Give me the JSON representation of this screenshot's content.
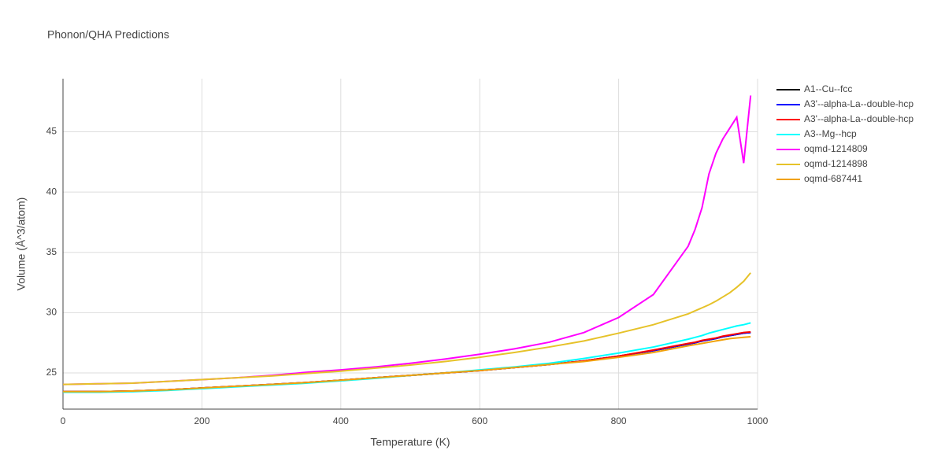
{
  "chart_data": {
    "type": "line",
    "title": "Phonon/QHA Predictions",
    "x_label": "Temperature (K)",
    "y_label": "Volume (Å^3/atom)",
    "x": [
      0,
      50,
      100,
      150,
      200,
      250,
      300,
      350,
      400,
      450,
      500,
      550,
      600,
      650,
      700,
      750,
      800,
      850,
      900,
      910,
      920,
      930,
      940,
      950,
      960,
      970,
      980,
      990
    ],
    "series": [
      {
        "name": "A1--Cu--fcc",
        "color": "#000000",
        "values": [
          23.45,
          23.45,
          23.5,
          23.6,
          23.75,
          23.9,
          24.05,
          24.2,
          24.4,
          24.6,
          24.8,
          25.0,
          25.2,
          25.45,
          25.7,
          26.0,
          26.4,
          26.85,
          27.4,
          27.5,
          27.65,
          27.75,
          27.85,
          28.0,
          28.1,
          28.2,
          28.3,
          28.35
        ]
      },
      {
        "name": "A3'--alpha-La--double-hcp",
        "color": "#0000ff",
        "values": [
          23.45,
          23.45,
          23.5,
          23.6,
          23.75,
          23.9,
          24.05,
          24.2,
          24.4,
          24.6,
          24.8,
          25.0,
          25.2,
          25.45,
          25.7,
          26.0,
          26.4,
          26.85,
          27.4,
          27.5,
          27.65,
          27.75,
          27.85,
          28.0,
          28.1,
          28.2,
          28.3,
          28.35
        ]
      },
      {
        "name": "A3'--alpha-La--double-hcp",
        "color": "#ff0000",
        "values": [
          23.45,
          23.45,
          23.5,
          23.6,
          23.75,
          23.9,
          24.05,
          24.2,
          24.4,
          24.6,
          24.8,
          25.0,
          25.2,
          25.45,
          25.7,
          26.0,
          26.4,
          26.9,
          27.45,
          27.55,
          27.7,
          27.8,
          27.9,
          28.05,
          28.15,
          28.25,
          28.35,
          28.4
        ]
      },
      {
        "name": "A3--Mg--hcp",
        "color": "#00ffff",
        "values": [
          23.4,
          23.4,
          23.45,
          23.55,
          23.7,
          23.85,
          24.0,
          24.15,
          24.35,
          24.55,
          24.8,
          25.0,
          25.25,
          25.5,
          25.8,
          26.2,
          26.65,
          27.15,
          27.8,
          27.95,
          28.1,
          28.3,
          28.45,
          28.6,
          28.75,
          28.9,
          29.0,
          29.15
        ]
      },
      {
        "name": "oqmd-1214809",
        "color": "#ff00ff",
        "values": [
          24.05,
          24.1,
          24.15,
          24.3,
          24.45,
          24.6,
          24.8,
          25.05,
          25.25,
          25.5,
          25.8,
          26.15,
          26.55,
          27.0,
          27.55,
          28.35,
          29.6,
          31.5,
          35.5,
          36.9,
          38.7,
          41.5,
          43.2,
          44.4,
          45.3,
          46.2,
          42.4,
          48.0
        ]
      },
      {
        "name": "oqmd-1214898",
        "color": "#e6c229",
        "values": [
          24.05,
          24.1,
          24.15,
          24.3,
          24.45,
          24.6,
          24.75,
          24.95,
          25.15,
          25.4,
          25.65,
          25.95,
          26.3,
          26.7,
          27.15,
          27.65,
          28.3,
          29.0,
          29.9,
          30.15,
          30.4,
          30.65,
          30.95,
          31.3,
          31.65,
          32.1,
          32.6,
          33.3
        ]
      },
      {
        "name": "oqmd-687441",
        "color": "#f1a10a",
        "values": [
          23.45,
          23.45,
          23.5,
          23.6,
          23.75,
          23.9,
          24.05,
          24.2,
          24.4,
          24.6,
          24.8,
          25.0,
          25.2,
          25.45,
          25.7,
          25.95,
          26.3,
          26.7,
          27.25,
          27.35,
          27.45,
          27.55,
          27.65,
          27.75,
          27.85,
          27.9,
          27.95,
          28.0
        ]
      }
    ],
    "xlim": [
      0,
      1000
    ],
    "xticks": [
      0,
      200,
      400,
      600,
      800,
      1000
    ],
    "ylim": [
      22,
      49.4
    ],
    "yticks": [
      25,
      30,
      35,
      40,
      45
    ],
    "grid": true,
    "legend": "right"
  }
}
